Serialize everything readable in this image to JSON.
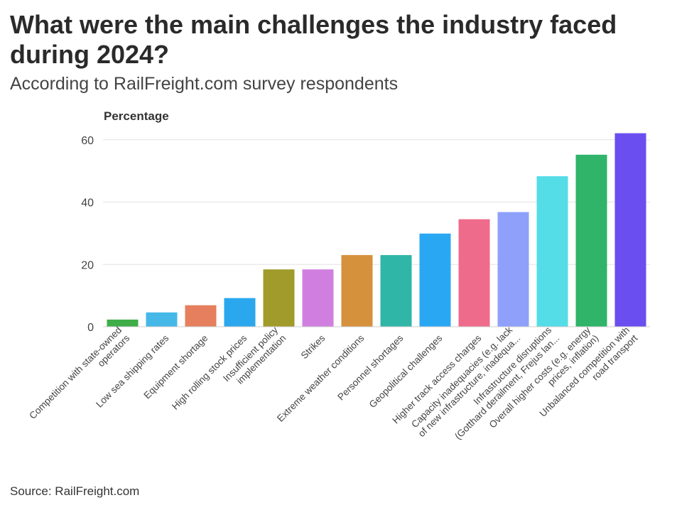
{
  "chart_data": {
    "type": "bar",
    "title": "What were the main challenges the industry faced during 2024?",
    "subtitle": "According to RailFreight.com survey respondents",
    "xlabel": "",
    "ylabel": "Percentage",
    "ylim": [
      0,
      62
    ],
    "yticks": [
      0,
      20,
      40,
      60
    ],
    "grid": true,
    "legend": "none",
    "source": "Source: RailFreight.com",
    "categories": [
      [
        "Competition with state-owned",
        "operators"
      ],
      [
        "Low sea shipping rates"
      ],
      [
        "Equipment shortage"
      ],
      [
        "High rolling stock prices"
      ],
      [
        "Insufficient policy",
        "implementation"
      ],
      [
        "Strikes"
      ],
      [
        "Extreme weather conditions"
      ],
      [
        "Personnel shortages"
      ],
      [
        "Geopolitical challenges"
      ],
      [
        "Higher track access charges"
      ],
      [
        "Capacity inadequacies (e.g. lack",
        "of new infrastructure, inadequa..."
      ],
      [
        "Infrastructure disruptions",
        "(Gotthard derailment, Frejus lan..."
      ],
      [
        "Overall higher costs (e.g. energy",
        "prices, inflation)"
      ],
      [
        "Unbalanced competition with",
        "road transport"
      ]
    ],
    "values": [
      2.3,
      4.6,
      6.9,
      9.2,
      18.4,
      18.4,
      23.0,
      23.0,
      29.9,
      34.5,
      36.8,
      48.3,
      55.2,
      62.1
    ],
    "colors": [
      "#3fae49",
      "#46b8e8",
      "#e67f5e",
      "#2ba7ee",
      "#a09b2a",
      "#d07fe0",
      "#d6913c",
      "#2fb6a6",
      "#2aa7f2",
      "#ef6b8c",
      "#8fa0fb",
      "#55dde7",
      "#2fb46a",
      "#6a4ef0"
    ]
  }
}
